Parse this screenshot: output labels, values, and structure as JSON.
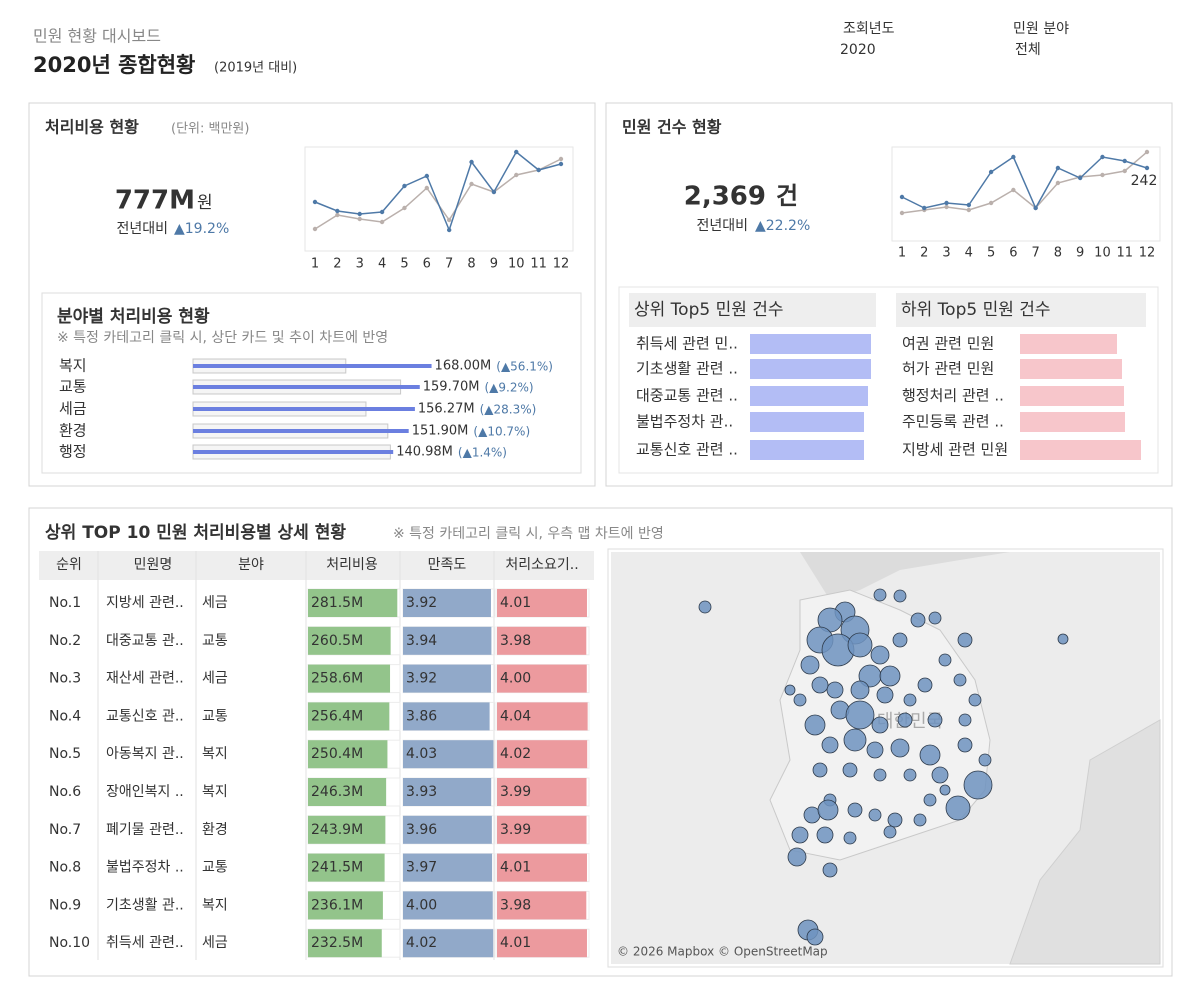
{
  "header": {
    "subtitle": "민원 현황 대시보드",
    "title": "2020년 종합현황",
    "note": "(2019년 대비)"
  },
  "filters": [
    {
      "label": "조회년도",
      "value": "2020"
    },
    {
      "label": "민원 분야",
      "value": "전체"
    }
  ],
  "cost_card": {
    "title": "처리비용 현황",
    "unit_note": "(단위: 백만원)",
    "value": "777M",
    "unit": "원",
    "compare_label": "전년대비",
    "change": "▲19.2%"
  },
  "count_card": {
    "title": "민원 건수 현황",
    "value": "2,369",
    "unit": "건",
    "compare_label": "전년대비",
    "change": "▲22.2%"
  },
  "chart_data": [
    {
      "type": "line",
      "categories": [
        "1",
        "2",
        "3",
        "4",
        "5",
        "6",
        "7",
        "8",
        "9",
        "10",
        "11",
        "12"
      ],
      "series": [
        {
          "color": "#4e79a7",
          "values": [
            48,
            39,
            36,
            38,
            64,
            74,
            20,
            88,
            58,
            98,
            80,
            86
          ]
        },
        {
          "color": "#bab0ac",
          "values": [
            21,
            35,
            31,
            28,
            42,
            62,
            30,
            66,
            58,
            75,
            80,
            91
          ]
        }
      ],
      "ylim": [
        10,
        100
      ]
    },
    {
      "type": "line",
      "categories": [
        "1",
        "2",
        "3",
        "4",
        "5",
        "6",
        "7",
        "8",
        "9",
        "10",
        "11",
        "12"
      ],
      "series": [
        {
          "color": "#4e79a7",
          "values": [
            155,
            122,
            137,
            131,
            230,
            275,
            122,
            242,
            212,
            275,
            263,
            242
          ]
        },
        {
          "color": "#bab0ac",
          "values": [
            107,
            116,
            125,
            116,
            137,
            176,
            122,
            197,
            215,
            221,
            233,
            290
          ]
        }
      ],
      "ylim": [
        26,
        296
      ],
      "label_last": true
    },
    {
      "type": "bar",
      "title": "분야별 처리비용 현황",
      "subtitle": "※ 특정 카테고리 클릭 시, 상단 카드 및 추이 차트에 반영",
      "categories": [
        "복지",
        "교통",
        "세금",
        "환경",
        "행정"
      ],
      "values": [
        168.0,
        159.7,
        156.27,
        151.9,
        140.98
      ],
      "value_labels": [
        "168.00M",
        "159.70M",
        "156.27M",
        "151.90M",
        "140.98M"
      ],
      "prior_values": [
        107.6,
        146.2,
        121.8,
        137.2,
        139.0
      ],
      "change_values": [
        56.1,
        9.2,
        28.3,
        10.7,
        1.4
      ],
      "change_labels": [
        "(▲56.1%)",
        "(▲9.2%)",
        "(▲28.3%)",
        "(▲10.7%)",
        "(▲1.4%)"
      ],
      "color": "#6b7fe0",
      "prior_color": "#f5f5f5",
      "xlim": [
        0,
        250
      ]
    },
    {
      "type": "bar",
      "title": "상위 Top5 민원 건수",
      "categories": [
        "취득세 관련 민..",
        "기초생활 관련 ..",
        "대중교통 관련 ..",
        "불법주정차 관..",
        "교통신호 관련 .."
      ],
      "values": [
        121,
        121,
        118,
        114,
        114
      ],
      "color": "#b3bdf5",
      "xlim": [
        0,
        121
      ]
    },
    {
      "type": "bar",
      "title": "하위 Top5 민원 건수",
      "categories": [
        "여권 관련 민원",
        "허가 관련 민원",
        "행정처리 관련 ..",
        "주민등록 관련 ..",
        "지방세 관련 민원"
      ],
      "values": [
        97,
        102,
        104,
        105,
        121
      ],
      "color": "#f7c6cb",
      "xlim": [
        0,
        121
      ]
    }
  ],
  "detail": {
    "title": "상위 TOP 10 민원 처리비용별 상세 현황",
    "note": "※ 특정 카테고리 클릭 시, 우측 맵 차트에 반영",
    "table": {
      "columns": [
        "순위",
        "민원명",
        "분야",
        "처리비용",
        "만족도",
        "처리소요기.."
      ],
      "rank": [
        "No.1",
        "No.2",
        "No.3",
        "No.4",
        "No.5",
        "No.6",
        "No.7",
        "No.8",
        "No.9",
        "No.10"
      ],
      "name": [
        "지방세 관련..",
        "대중교통 관..",
        "재산세 관련..",
        "교통신호 관..",
        "아동복지 관..",
        "장애인복지 ..",
        "폐기물 관련..",
        "불법주정차 ..",
        "기초생활 관..",
        "취득세 관련.."
      ],
      "field": [
        "세금",
        "교통",
        "세금",
        "교통",
        "복지",
        "복지",
        "환경",
        "교통",
        "복지",
        "세금"
      ],
      "cost": {
        "values": [
          281.5,
          260.5,
          258.6,
          256.4,
          250.4,
          246.3,
          243.9,
          241.5,
          236.1,
          232.5
        ],
        "value_labels": [
          "281.5M",
          "260.5M",
          "258.6M",
          "256.4M",
          "250.4M",
          "246.3M",
          "243.9M",
          "241.5M",
          "236.1M",
          "232.5M"
        ],
        "xlim": [
          0,
          290
        ],
        "color": "#93c48b"
      },
      "satisfaction": {
        "values": [
          3.92,
          3.94,
          3.92,
          3.86,
          4.03,
          3.93,
          3.96,
          3.97,
          4.0,
          4.02
        ],
        "value_labels": [
          "3.92",
          "3.94",
          "3.92",
          "3.86",
          "4.03",
          "3.93",
          "3.96",
          "3.97",
          "4.00",
          "4.02"
        ],
        "xlim": [
          0,
          4.1
        ],
        "color": "#91a9c9"
      },
      "time": {
        "values": [
          4.01,
          3.98,
          4.0,
          4.04,
          4.02,
          3.99,
          3.99,
          4.01,
          3.98,
          4.01
        ],
        "value_labels": [
          "4.01",
          "3.98",
          "4.00",
          "4.04",
          "4.02",
          "3.99",
          "3.99",
          "4.01",
          "3.98",
          "4.01"
        ],
        "xlim": [
          0,
          4.1
        ],
        "color": "#ec9a9e"
      }
    },
    "map_label": "대한민국",
    "map_attribution": "© 2026 Mapbox © OpenStreetMap"
  }
}
